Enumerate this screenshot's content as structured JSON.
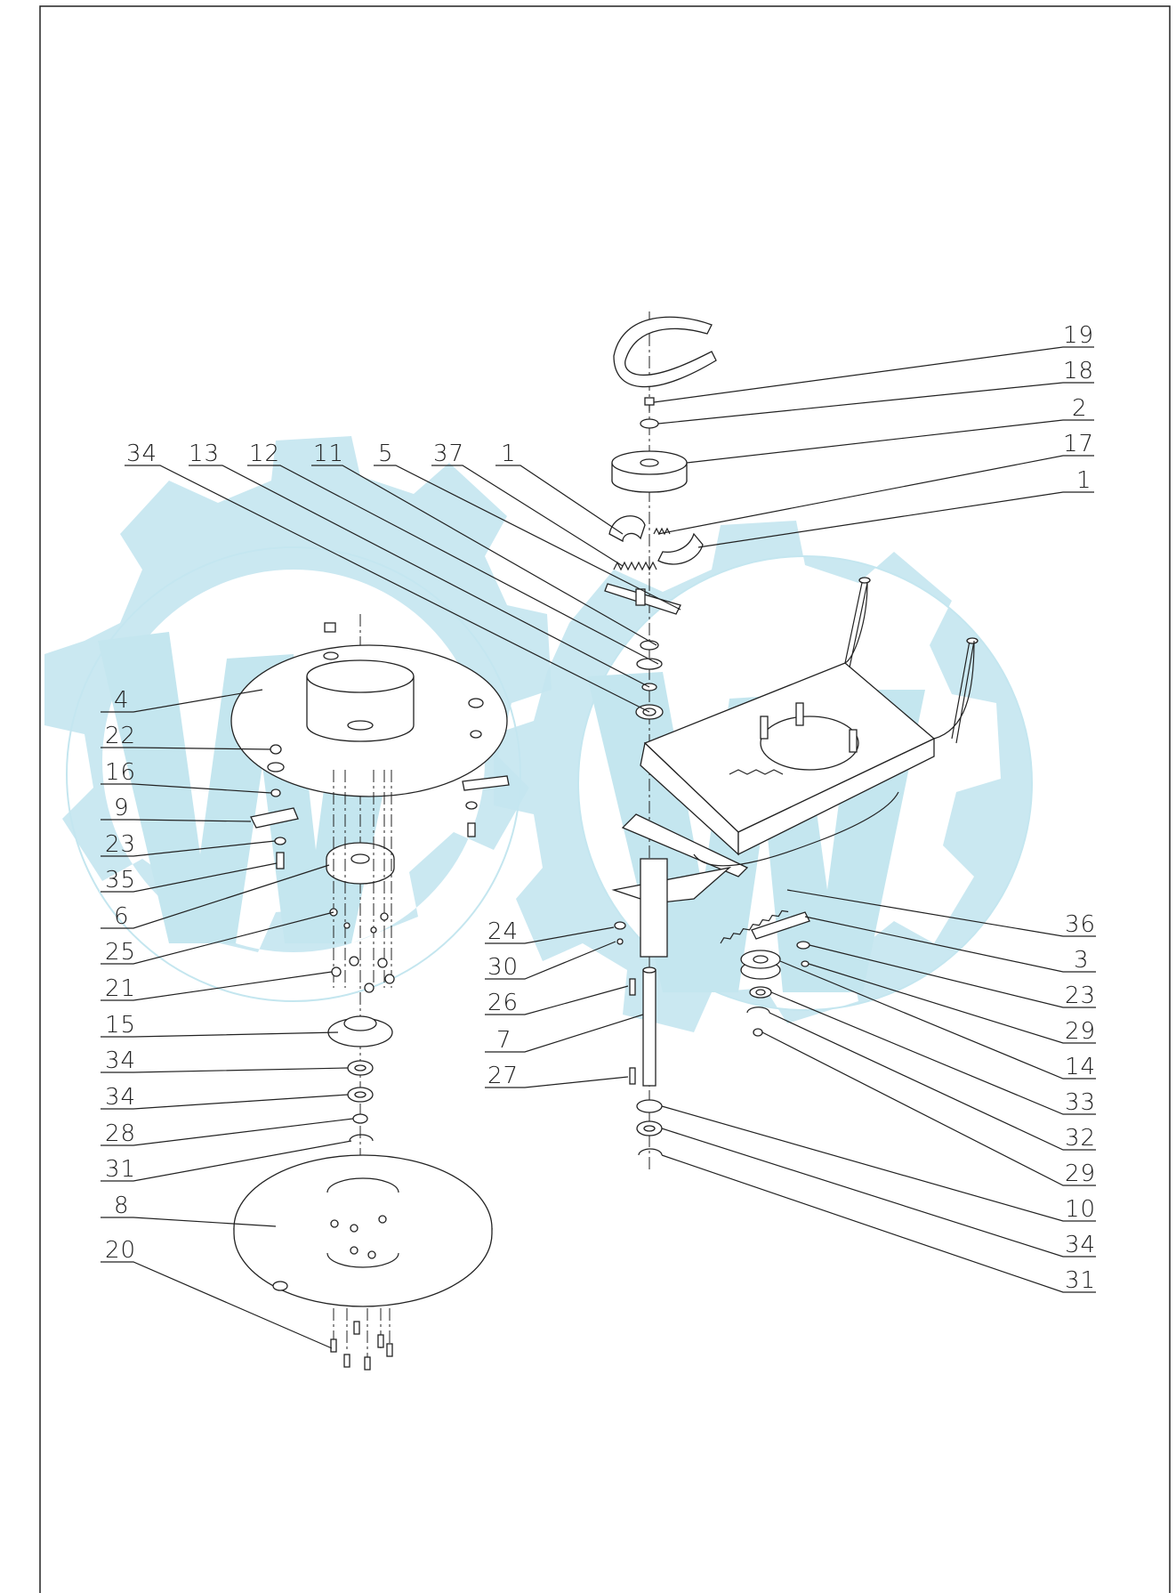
{
  "labels": {
    "l_19": "19",
    "l_18": "18",
    "l_2": "2",
    "l_17": "17",
    "l_1b": "1",
    "l_34a": "34",
    "l_13": "13",
    "l_12": "12",
    "l_11": "11",
    "l_5": "5",
    "l_37": "37",
    "l_1a": "1",
    "l_4": "4",
    "l_22": "22",
    "l_16": "16",
    "l_9": "9",
    "l_23a": "23",
    "l_35": "35",
    "l_6": "6",
    "l_25": "25",
    "l_21": "21",
    "l_15": "15",
    "l_34b": "34",
    "l_34c": "34",
    "l_28": "28",
    "l_31a": "31",
    "l_8": "8",
    "l_20": "20",
    "l_24": "24",
    "l_30": "30",
    "l_26": "26",
    "l_7": "7",
    "l_27": "27",
    "l_36": "36",
    "l_3": "3",
    "l_23b": "23",
    "l_29a": "29",
    "l_14": "14",
    "l_33": "33",
    "l_32": "32",
    "l_29b": "29",
    "l_10": "10",
    "l_34d": "34",
    "l_31b": "31"
  },
  "colors": {
    "watermark": "#c4e6ef",
    "ink": "#222222",
    "background": "#ffffff"
  }
}
